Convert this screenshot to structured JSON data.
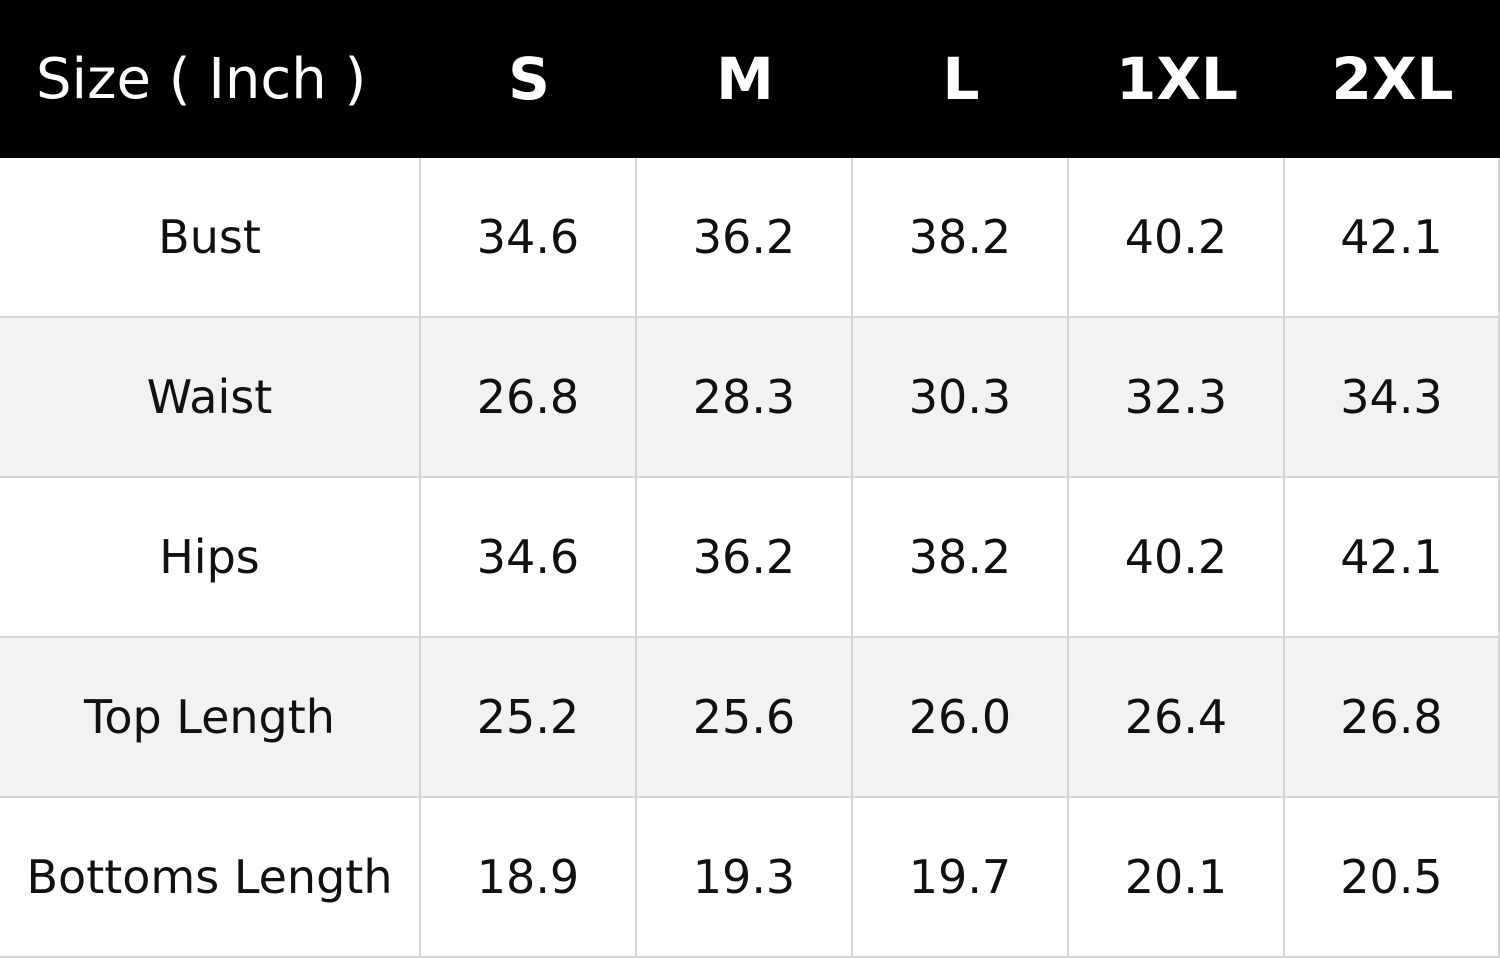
{
  "header": {
    "columns": [
      "Size ( Inch )",
      "S",
      "M",
      "L",
      "1XL",
      "2XL"
    ]
  },
  "table": {
    "rows": [
      [
        "Bust",
        "34.6",
        "36.2",
        "38.2",
        "40.2",
        "42.1"
      ],
      [
        "Waist",
        "26.8",
        "28.3",
        "30.3",
        "32.3",
        "34.3"
      ],
      [
        "Hips",
        "34.6",
        "36.2",
        "38.2",
        "40.2",
        "42.1"
      ],
      [
        "Top Length",
        "25.2",
        "25.6",
        "26.0",
        "26.4",
        "26.8"
      ],
      [
        "Bottoms Length",
        "18.9",
        "19.3",
        "19.7",
        "20.1",
        "20.5"
      ]
    ]
  }
}
